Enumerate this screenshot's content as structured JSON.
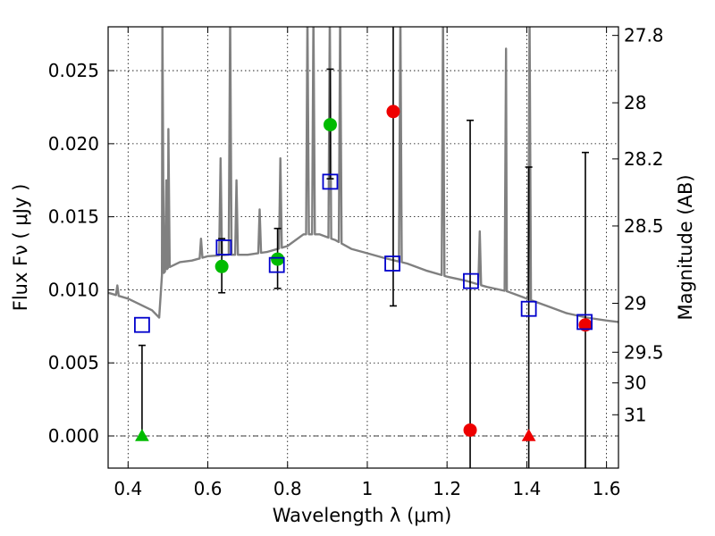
{
  "chart_data": {
    "type": "scatter",
    "xlabel": "Wavelength  λ (μm)",
    "ylabel": "Flux  Fν  ( μJy )",
    "y2label": "Magnitude (AB)",
    "xlim": [
      0.35,
      1.63
    ],
    "ylim": [
      -0.0022,
      0.028
    ],
    "grid": true,
    "x_ticks": [
      0.4,
      0.6,
      0.8,
      1.0,
      1.2,
      1.4,
      1.6
    ],
    "x_tick_labels": [
      "0.4",
      "0.6",
      "0.8",
      "1",
      "1.2",
      "1.4",
      "1.6"
    ],
    "y_ticks": [
      0.0,
      0.005,
      0.01,
      0.015,
      0.02,
      0.025
    ],
    "y_tick_labels": [
      "0.000",
      "0.005",
      "0.010",
      "0.015",
      "0.020",
      "0.025"
    ],
    "y2_ticks": [
      {
        "flux": 0.02741,
        "label": "27.8"
      },
      {
        "flux": 0.0228,
        "label": "28"
      },
      {
        "flux": 0.01896,
        "label": "28.2"
      },
      {
        "flux": 0.01437,
        "label": "28.5"
      },
      {
        "flux": 0.00908,
        "label": "29"
      },
      {
        "flux": 0.00573,
        "label": "29.5"
      },
      {
        "flux": 0.00363,
        "label": "30"
      },
      {
        "flux": 0.00145,
        "label": "31"
      }
    ],
    "colors": {
      "spectrum": "#808080",
      "model": "#0000cc",
      "detection": "#00bb00",
      "low_significance": "#ee0000",
      "errorbar": "#000000"
    },
    "spectrum": {
      "continuum": [
        [
          0.35,
          0.0098
        ],
        [
          0.4,
          0.0094
        ],
        [
          0.43,
          0.009
        ],
        [
          0.46,
          0.0086
        ],
        [
          0.478,
          0.0081
        ],
        [
          0.485,
          0.011
        ],
        [
          0.5,
          0.0115
        ],
        [
          0.53,
          0.0119
        ],
        [
          0.56,
          0.012
        ],
        [
          0.6,
          0.0123
        ],
        [
          0.65,
          0.0124
        ],
        [
          0.7,
          0.0124
        ],
        [
          0.75,
          0.0126
        ],
        [
          0.8,
          0.013
        ],
        [
          0.84,
          0.0138
        ],
        [
          0.88,
          0.0138
        ],
        [
          0.92,
          0.0134
        ],
        [
          0.96,
          0.0128
        ],
        [
          1.0,
          0.0125
        ],
        [
          1.04,
          0.0122
        ],
        [
          1.1,
          0.0118
        ],
        [
          1.15,
          0.0113
        ],
        [
          1.2,
          0.0109
        ],
        [
          1.25,
          0.0106
        ],
        [
          1.3,
          0.0102
        ],
        [
          1.35,
          0.0099
        ],
        [
          1.4,
          0.0094
        ],
        [
          1.45,
          0.0089
        ],
        [
          1.5,
          0.0084
        ],
        [
          1.55,
          0.0081
        ],
        [
          1.6,
          0.0079
        ],
        [
          1.63,
          0.0078
        ]
      ],
      "lines": [
        [
          0.373,
          0.0103
        ],
        [
          0.486,
          0.029
        ],
        [
          0.496,
          0.0175
        ],
        [
          0.501,
          0.021
        ],
        [
          0.583,
          0.0135
        ],
        [
          0.632,
          0.019
        ],
        [
          0.656,
          0.029
        ],
        [
          0.672,
          0.0175
        ],
        [
          0.73,
          0.0155
        ],
        [
          0.782,
          0.019
        ],
        [
          0.85,
          0.029
        ],
        [
          0.865,
          0.029
        ],
        [
          0.906,
          0.029
        ],
        [
          0.932,
          0.029
        ],
        [
          1.083,
          0.029
        ],
        [
          1.19,
          0.029
        ],
        [
          1.282,
          0.014
        ],
        [
          1.348,
          0.0265
        ],
        [
          1.407,
          0.029
        ]
      ]
    },
    "model_points": [
      {
        "x": 0.435,
        "y": 0.0076
      },
      {
        "x": 0.64,
        "y": 0.0129
      },
      {
        "x": 0.773,
        "y": 0.0117
      },
      {
        "x": 0.907,
        "y": 0.0174
      },
      {
        "x": 1.063,
        "y": 0.0118
      },
      {
        "x": 1.26,
        "y": 0.0106
      },
      {
        "x": 1.405,
        "y": 0.0087
      },
      {
        "x": 1.545,
        "y": 0.0078
      }
    ],
    "observed_points": [
      {
        "x": 0.435,
        "y": 0.0,
        "err_low": 0.0,
        "err_high": 0.0062,
        "marker": "triangle",
        "color": "#00bb00"
      },
      {
        "x": 0.635,
        "y": 0.0116,
        "err_low": 0.0098,
        "err_high": 0.0135,
        "marker": "circle",
        "color": "#00bb00"
      },
      {
        "x": 0.775,
        "y": 0.0121,
        "err_low": 0.0101,
        "err_high": 0.0142,
        "marker": "circle",
        "color": "#00bb00"
      },
      {
        "x": 0.907,
        "y": 0.0213,
        "err_low": 0.0176,
        "err_high": 0.0251,
        "marker": "circle",
        "color": "#00bb00"
      },
      {
        "x": 1.065,
        "y": 0.0222,
        "err_low": 0.0089,
        "err_high": 0.03,
        "marker": "circle",
        "color": "#ee0000"
      },
      {
        "x": 1.258,
        "y": 0.0004,
        "err_low": -0.004,
        "err_high": 0.0216,
        "marker": "circle",
        "color": "#ee0000"
      },
      {
        "x": 1.405,
        "y": 0.0,
        "err_low": -0.004,
        "err_high": 0.0184,
        "marker": "triangle",
        "color": "#ee0000"
      },
      {
        "x": 1.547,
        "y": 0.0076,
        "err_low": -0.004,
        "err_high": 0.0194,
        "marker": "circle",
        "color": "#ee0000"
      }
    ]
  }
}
